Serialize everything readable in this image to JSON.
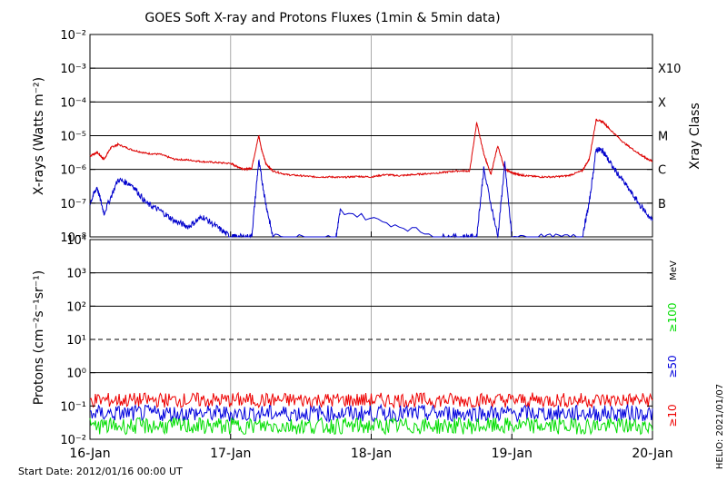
{
  "title": "GOES Soft X-ray and Protons Fluxes   (1min & 5min data)",
  "start_date_label": "Start Date: 2012/01/16 00:00 UT",
  "credit_label": "HELIO: 2021/01/07",
  "colors": {
    "xray_long": "#dd0000",
    "xray_short": "#0000cc",
    "p10": "#ee0000",
    "p50": "#0000dd",
    "p100": "#00dd00",
    "grid": "#000000",
    "day_line": "#aaaaaa"
  },
  "chart_data": [
    {
      "type": "line",
      "panel": "xray",
      "ylabel": "X-rays (Watts m⁻²)",
      "yscale": "log",
      "ylim": [
        1e-08,
        0.01
      ],
      "ytick_labels": [
        "10⁻⁸",
        "10⁻⁷",
        "10⁻⁶",
        "10⁻⁵",
        "10⁻⁴",
        "10⁻³",
        "10⁻²"
      ],
      "xlim": [
        "2012-01-16",
        "2012-01-20"
      ],
      "x_tick_labels": [
        "16-Jan",
        "17-Jan",
        "18-Jan",
        "19-Jan",
        "20-Jan"
      ],
      "grid_lines": [
        1e-07,
        1e-06,
        1e-05,
        0.0001,
        0.001
      ],
      "right_axis_title": "Xray Class",
      "class_labels": [
        {
          "label": "X10",
          "value": 0.001
        },
        {
          "label": "X",
          "value": 0.0001
        },
        {
          "label": "M",
          "value": 1e-05
        },
        {
          "label": "C",
          "value": 1e-06
        },
        {
          "label": "B",
          "value": 1e-07
        }
      ],
      "series": [
        {
          "color": "#dd0000",
          "x": [
            0,
            0.05,
            0.1,
            0.15,
            0.2,
            0.3,
            0.4,
            0.5,
            0.6,
            0.7,
            0.8,
            0.9,
            1.0,
            1.05,
            1.1,
            1.15,
            1.2,
            1.22,
            1.25,
            1.3,
            1.4,
            1.5,
            1.6,
            1.7,
            1.8,
            1.9,
            2.0,
            2.1,
            2.2,
            2.3,
            2.4,
            2.5,
            2.6,
            2.7,
            2.75,
            2.8,
            2.85,
            2.9,
            2.95,
            3.0,
            3.05,
            3.1,
            3.2,
            3.3,
            3.4,
            3.5,
            3.55,
            3.6,
            3.65,
            3.7,
            3.8,
            3.9,
            3.95,
            4.0
          ],
          "y": [
            2.5e-06,
            3.2e-06,
            2e-06,
            4.5e-06,
            5.5e-06,
            3.8e-06,
            3e-06,
            2.8e-06,
            2e-06,
            1.9e-06,
            1.7e-06,
            1.6e-06,
            1.5e-06,
            1.2e-06,
            1e-06,
            1.1e-06,
            1e-05,
            4e-06,
            1.5e-06,
            9e-07,
            7e-07,
            6.5e-07,
            6e-07,
            6e-07,
            5.8e-07,
            6.2e-07,
            6e-07,
            7e-07,
            6.5e-07,
            7e-07,
            7.5e-07,
            8e-07,
            9e-07,
            9e-07,
            2.4e-05,
            3e-06,
            7e-07,
            5e-06,
            1e-06,
            8e-07,
            7e-07,
            6.5e-07,
            6e-07,
            6e-07,
            6.5e-07,
            9e-07,
            2e-06,
            3e-05,
            2.5e-05,
            1.5e-05,
            6e-06,
            3e-06,
            2.2e-06,
            1.7e-06
          ]
        },
        {
          "color": "#0000cc",
          "x": [
            0,
            0.05,
            0.1,
            0.2,
            0.3,
            0.4,
            0.5,
            0.6,
            0.7,
            0.8,
            0.9,
            1.0,
            1.05,
            1.15,
            1.2,
            1.25,
            1.3,
            1.75,
            1.78,
            2.5,
            2.65,
            2.75,
            2.8,
            2.9,
            2.95,
            3.0,
            3.5,
            3.55,
            3.6,
            3.65,
            3.7,
            3.8,
            3.9,
            4.0
          ],
          "y": [
            1e-07,
            3e-07,
            5e-08,
            5e-07,
            3.5e-07,
            1e-07,
            6e-08,
            3e-08,
            2e-08,
            4e-08,
            2e-08,
            1e-08,
            1e-08,
            1e-08,
            1.8e-06,
            1e-07,
            1e-08,
            1e-08,
            6e-08,
            1e-08,
            1e-08,
            1e-08,
            1e-06,
            1e-08,
            1.5e-06,
            1e-08,
            1e-08,
            1e-07,
            4e-06,
            3.5e-06,
            1.5e-06,
            4e-07,
            1e-07,
            3e-08
          ]
        }
      ]
    },
    {
      "type": "line",
      "panel": "protons",
      "ylabel": "Protons (cm⁻²s⁻¹sr⁻¹)",
      "yscale": "log",
      "ylim": [
        0.01,
        10000
      ],
      "ytick_labels": [
        "10⁻²",
        "10⁻¹",
        "10⁰",
        "10¹",
        "10²",
        "10³",
        "10⁴"
      ],
      "xlim": [
        "2012-01-16",
        "2012-01-20"
      ],
      "x_tick_labels": [
        "16-Jan",
        "17-Jan",
        "18-Jan",
        "19-Jan",
        "20-Jan"
      ],
      "grid_lines": [
        1,
        100,
        1000
      ],
      "threshold_line": 10,
      "energy_unit": "MeV",
      "series": [
        {
          "name": "≥10",
          "color": "#ee0000",
          "mean": 0.15
        },
        {
          "name": "≥50",
          "color": "#0000dd",
          "mean": 0.06
        },
        {
          "name": "≥100",
          "color": "#00dd00",
          "mean": 0.025
        }
      ]
    }
  ]
}
